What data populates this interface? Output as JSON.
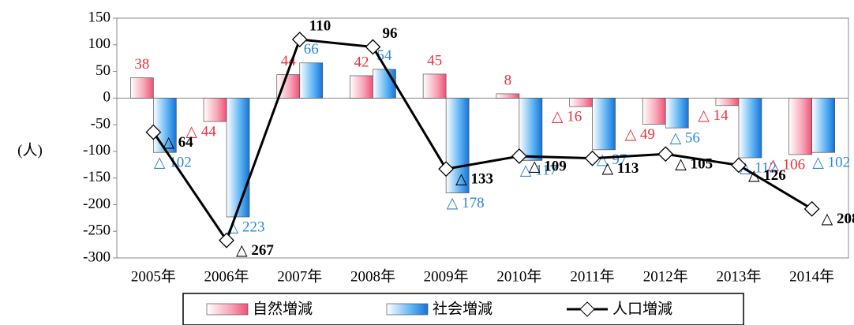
{
  "chart_data": {
    "type": "bar",
    "y_label": "(人)",
    "categories": [
      "2005年",
      "2006年",
      "2007年",
      "2008年",
      "2009年",
      "2010年",
      "2011年",
      "2012年",
      "2013年",
      "2014年"
    ],
    "ylim": [
      -300,
      150
    ],
    "yticks": [
      -300,
      -250,
      -200,
      -150,
      -100,
      -50,
      0,
      50,
      100,
      150
    ],
    "series": [
      {
        "name": "自然増減",
        "type": "bar",
        "color": "#f4607e",
        "label_color": "#e8343c",
        "values": [
          38,
          -44,
          44,
          42,
          45,
          8,
          -16,
          -49,
          -14,
          -106
        ],
        "value_labels": [
          "38",
          "△ 44",
          "44",
          "42",
          "45",
          "8",
          "△ 16",
          "△ 49",
          "△ 14",
          "△ 106"
        ]
      },
      {
        "name": "社会増減",
        "type": "bar",
        "color": "#2a8fe6",
        "label_color": "#2f86d8",
        "values": [
          -102,
          -223,
          66,
          54,
          -178,
          -117,
          -97,
          -56,
          -112,
          -102
        ],
        "value_labels": [
          "△ 102",
          "△ 223",
          "66",
          "54",
          "△ 178",
          "△ 117",
          "△ 97",
          "△ 56",
          "△ 112",
          "△ 102"
        ]
      },
      {
        "name": "人口増減",
        "type": "line",
        "color": "#000000",
        "label_color": "#000000",
        "values": [
          -64,
          -267,
          110,
          96,
          -133,
          -109,
          -113,
          -105,
          -126,
          -208
        ],
        "value_labels": [
          "△ 64",
          "△ 267",
          "110",
          "96",
          "△ 133",
          "△ 109",
          "△ 113",
          "△ 105",
          "△ 126",
          "△ 208"
        ]
      }
    ]
  }
}
